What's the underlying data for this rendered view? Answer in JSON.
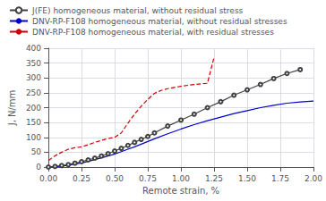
{
  "chart_data": {
    "type": "line",
    "xlabel": "Remote strain, %",
    "ylabel": "J, N/mm",
    "xlim": [
      0.0,
      2.0
    ],
    "ylim": [
      0,
      400
    ],
    "xticks": [
      {
        "value": 0,
        "label": "0.00"
      },
      0.25,
      {
        "value": 0.5,
        "label": "0.50"
      },
      0.75,
      {
        "value": 1,
        "label": "1.00"
      },
      1.25,
      {
        "value": 1.5,
        "label": "1.50"
      },
      1.75,
      {
        "value": 2,
        "label": "2.00"
      }
    ],
    "yticks": [
      0,
      50,
      100,
      150,
      200,
      250,
      300,
      350,
      400
    ],
    "grid": true,
    "legend": "upper left",
    "series": [
      {
        "name": "J(FE) homogeneous material, without residual stress",
        "color": "#404040",
        "marker": "open_circle",
        "line_style": "solid",
        "x": [
          0.0,
          0.05,
          0.1,
          0.15,
          0.2,
          0.25,
          0.3,
          0.35,
          0.4,
          0.45,
          0.5,
          0.55,
          0.6,
          0.65,
          0.7,
          0.75,
          0.8,
          0.9,
          1.0,
          1.1,
          1.2,
          1.3,
          1.4,
          1.5,
          1.6,
          1.7,
          1.8,
          1.9
        ],
        "values": [
          0.0,
          2.0,
          5.0,
          8.0,
          13.0,
          18.0,
          24.0,
          30.0,
          37.0,
          45.0,
          54.0,
          63.0,
          73.0,
          83.0,
          93.0,
          103.0,
          115.0,
          138.0,
          158.0,
          178.0,
          200.0,
          220.0,
          242.0,
          260.0,
          278.0,
          298.0,
          315.0,
          328.0
        ]
      },
      {
        "name": "DNV-RP-F108 homogeneous material, without residual stresses",
        "color": "#0000cc",
        "marker": "none",
        "line_style": "solid",
        "x": [
          0.0,
          0.05,
          0.1,
          0.15,
          0.2,
          0.25,
          0.3,
          0.35,
          0.4,
          0.45,
          0.5,
          0.55,
          0.6,
          0.65,
          0.7,
          0.75,
          0.8,
          0.9,
          1.0,
          1.1,
          1.2,
          1.3,
          1.4,
          1.5,
          1.6,
          1.7,
          1.8,
          1.9,
          2.0
        ],
        "values": [
          0.0,
          1.0,
          3.0,
          6.0,
          10.0,
          14.0,
          19.0,
          25.0,
          31.0,
          37.0,
          44.0,
          52.0,
          60.0,
          68.0,
          77.0,
          86.0,
          95.0,
          112.0,
          128.0,
          143.0,
          156.0,
          168.0,
          180.0,
          190.0,
          200.0,
          208.0,
          215.0,
          219.0,
          222.0
        ]
      },
      {
        "name": "DNV-RP-F108 homogeneous material, with residual stresses",
        "color": "#cc0000",
        "marker": "none",
        "line_style": "dashed",
        "x": [
          0.0,
          0.05,
          0.1,
          0.15,
          0.2,
          0.25,
          0.3,
          0.35,
          0.4,
          0.45,
          0.5,
          0.55,
          0.6,
          0.65,
          0.7,
          0.75,
          0.8,
          0.85,
          0.9,
          0.95,
          1.0,
          1.1,
          1.2,
          1.25
        ],
        "values": [
          22.0,
          38.0,
          50.0,
          60.0,
          65.0,
          68.0,
          75.0,
          83.0,
          90.0,
          96.0,
          100.0,
          115.0,
          148.0,
          178.0,
          205.0,
          228.0,
          248.0,
          258.0,
          264.0,
          268.0,
          272.0,
          278.0,
          282.0,
          370.0
        ]
      }
    ]
  }
}
